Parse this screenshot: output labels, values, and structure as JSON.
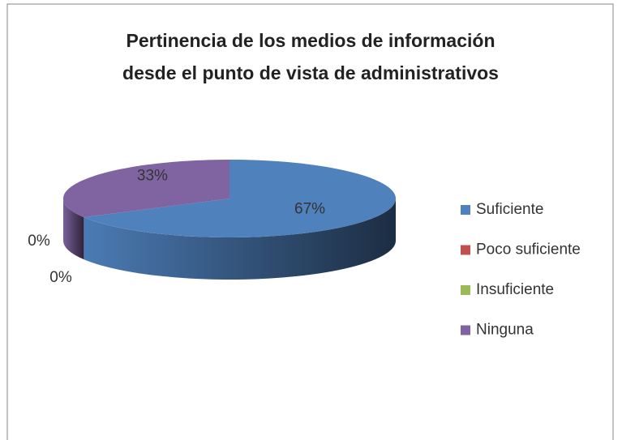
{
  "chart_data": {
    "type": "pie3d",
    "title": [
      "Pertinencia  de los medios de información",
      "desde el punto de vista de  administrativos"
    ],
    "categories": [
      "Suficiente",
      "Poco suficiente",
      "Insuficiente",
      "Ninguna"
    ],
    "values": [
      67,
      0,
      0,
      33
    ],
    "value_labels": [
      "67%",
      "0%",
      "0%",
      "33%"
    ],
    "colors": [
      "#4f81bd",
      "#c0504d",
      "#9bbb59",
      "#8064a2"
    ],
    "legend": "right"
  }
}
